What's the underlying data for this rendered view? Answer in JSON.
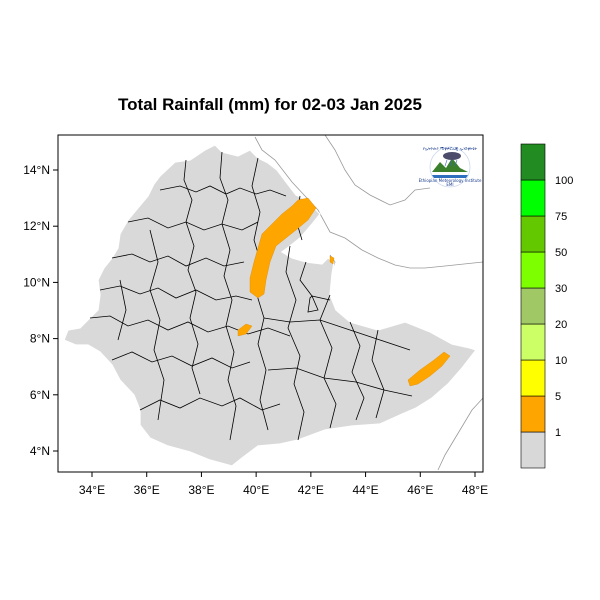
{
  "map": {
    "title": "Total Rainfall (mm) for 02-03 Jan 2025",
    "lon_ticks": [
      "34°E",
      "36°E",
      "38°E",
      "40°E",
      "42°E",
      "44°E",
      "46°E",
      "48°E"
    ],
    "lat_ticks": [
      "14°N",
      "12°N",
      "10°N",
      "8°N",
      "6°N",
      "4°N"
    ],
    "lon_values": [
      34,
      36,
      38,
      40,
      42,
      44,
      46,
      48
    ],
    "lat_values": [
      14,
      12,
      10,
      8,
      6,
      4
    ],
    "logo": {
      "icon": "ethiopian-meteorology-institute-logo",
      "arc_text": "የኢትዮጵያ ሚቲዎሮሎጂ ኢንስቲትዩት",
      "caption": "Ethiopian Meteorology Institute",
      "abbr": "EMI"
    }
  },
  "legend": {
    "labels": [
      "1",
      "5",
      "10",
      "20",
      "30",
      "50",
      "75",
      "100"
    ],
    "colors": [
      "#d8d8d8",
      "#ffa500",
      "#ffff00",
      "#ccff66",
      "#a0c864",
      "#7dff00",
      "#64c800",
      "#00ff00",
      "#228b22"
    ]
  },
  "colors": {
    "land": "#d9d9d9",
    "rain_1_5": "#ffa500",
    "boundary": "#000000",
    "neighbor_lines": "#9a9a9a"
  }
}
